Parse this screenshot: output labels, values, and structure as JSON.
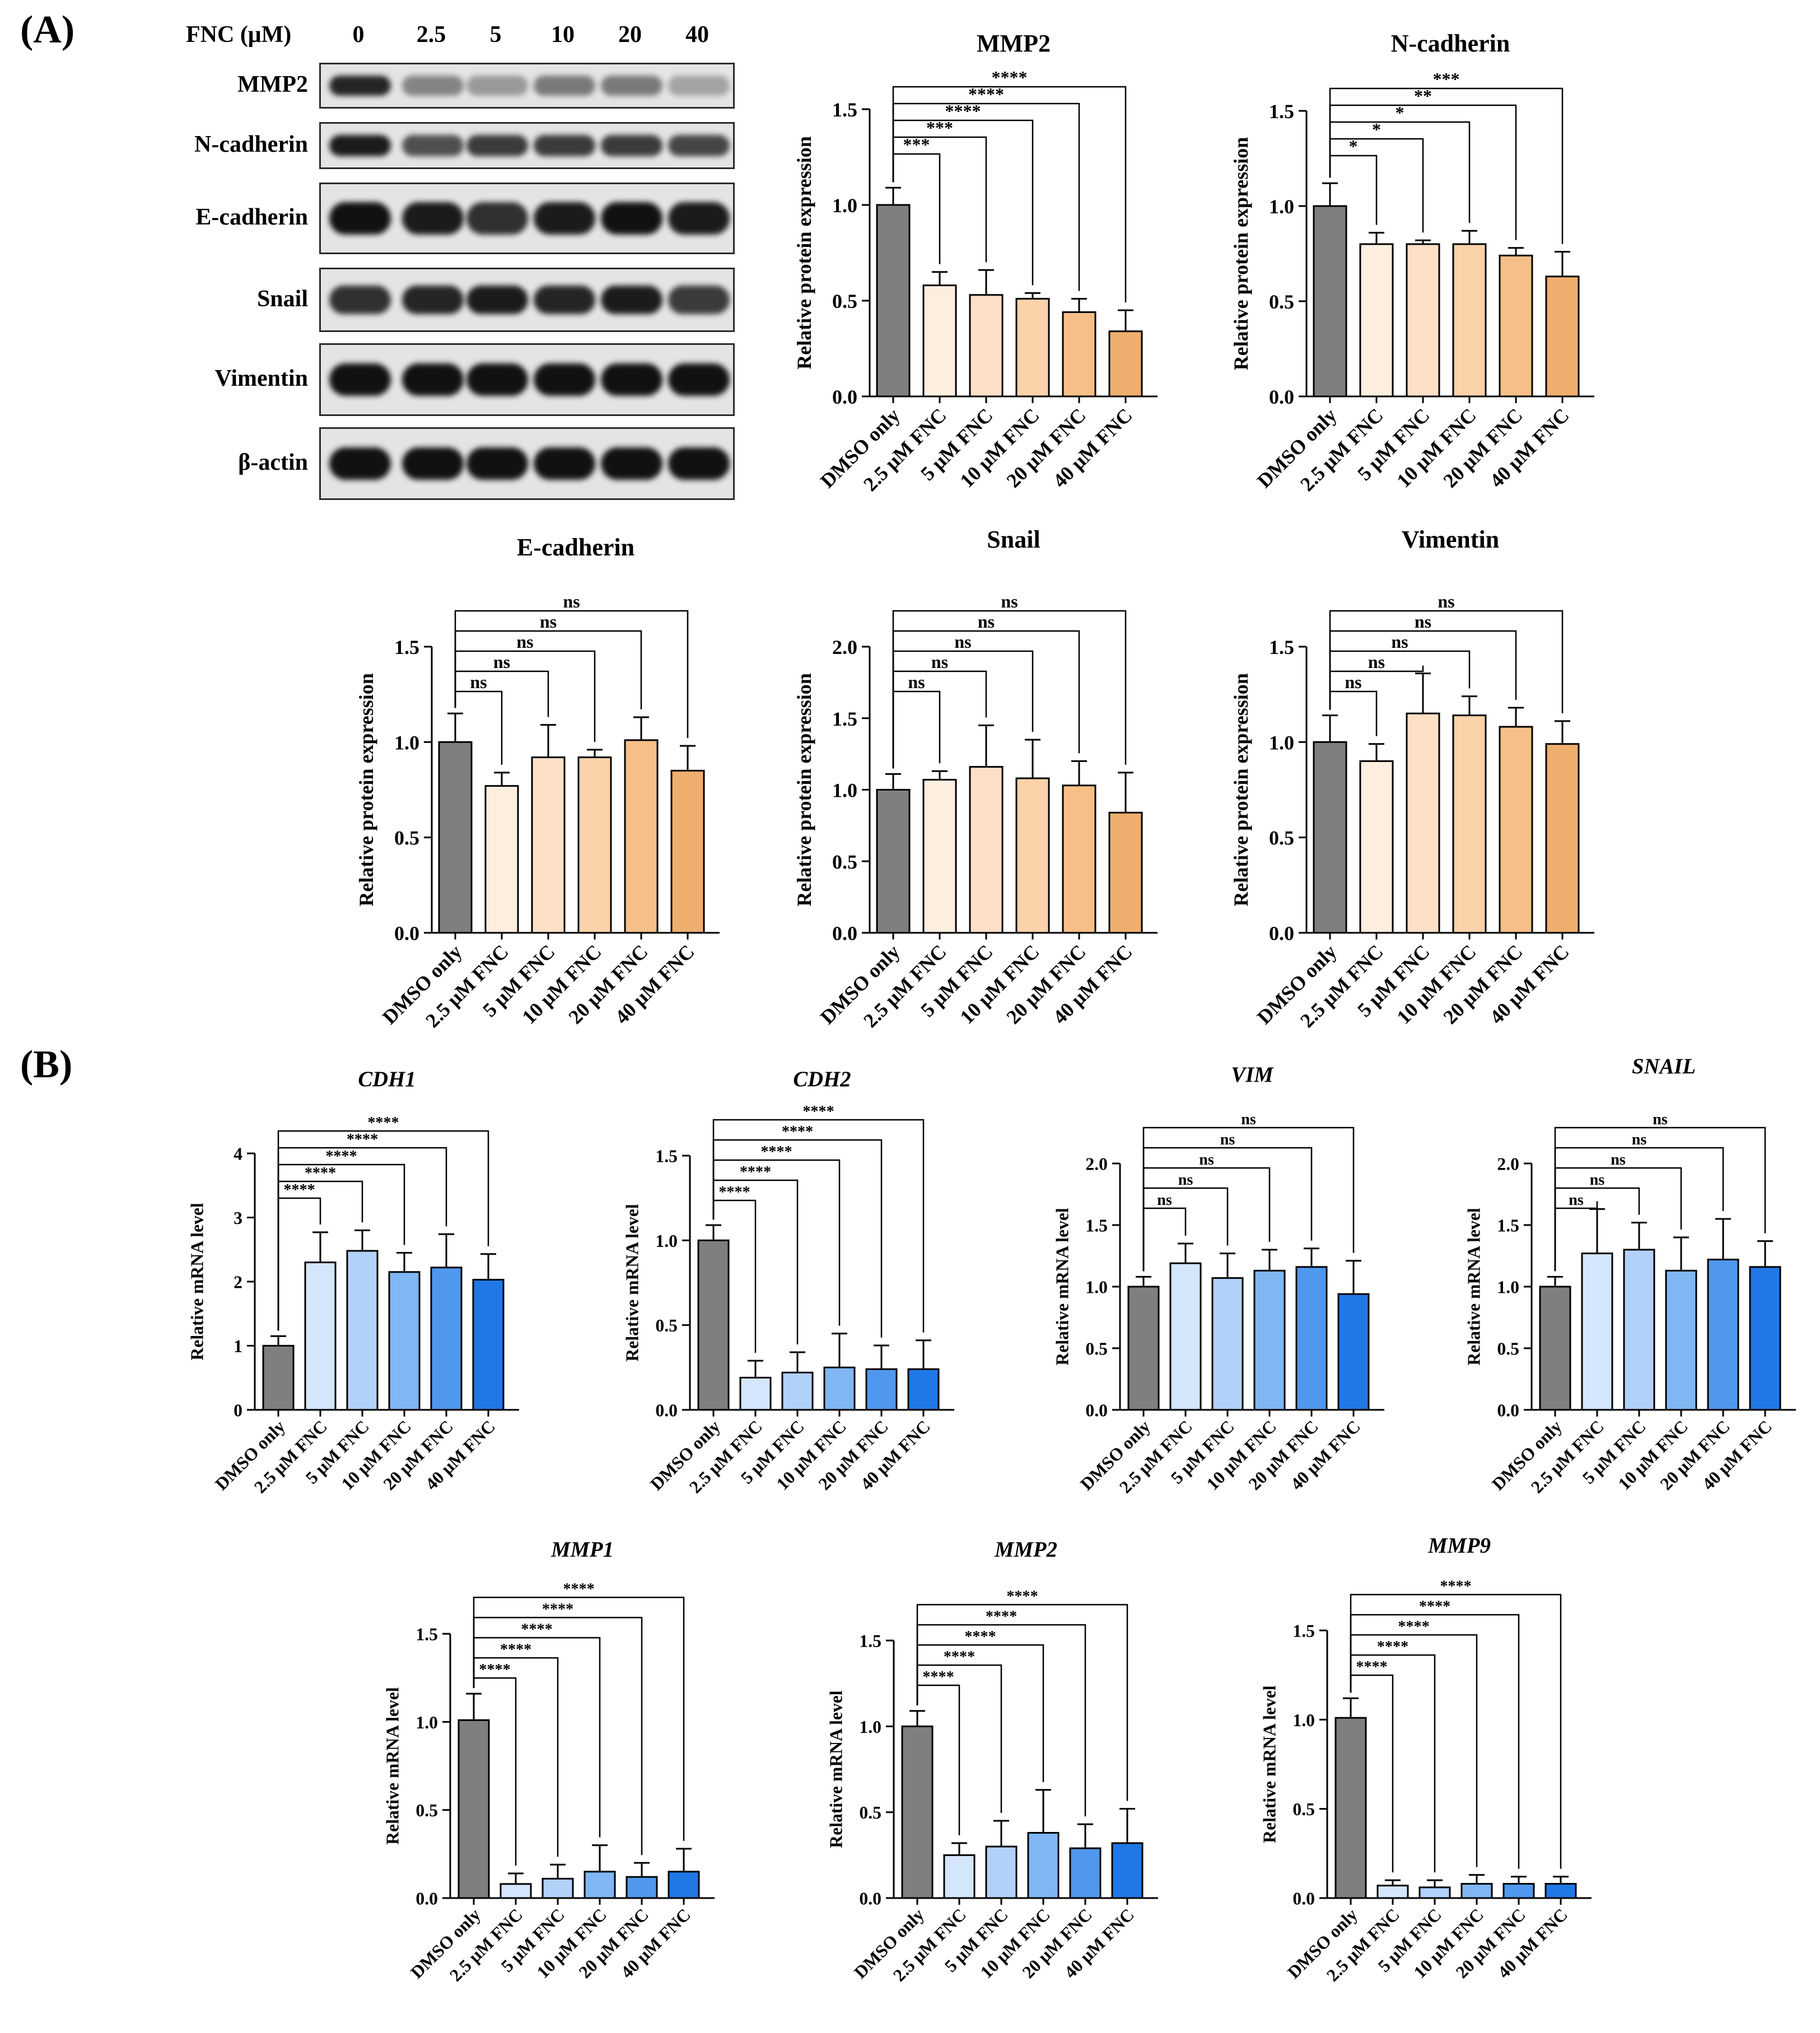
{
  "panels": {
    "a": "(A)",
    "b": "(B)"
  },
  "western_blot": {
    "header_label": "FNC (μM)",
    "lanes": [
      "0",
      "2.5",
      "5",
      "10",
      "20",
      "40"
    ],
    "rows": [
      {
        "label": "MMP2",
        "intensity": [
          0.9,
          0.45,
          0.35,
          0.5,
          0.5,
          0.3
        ]
      },
      {
        "label": "N-cadherin",
        "intensity": [
          0.95,
          0.7,
          0.8,
          0.8,
          0.8,
          0.75
        ]
      },
      {
        "label": "E-cadherin",
        "intensity": [
          1.0,
          0.95,
          0.85,
          0.95,
          1.0,
          0.95
        ]
      },
      {
        "label": "Snail",
        "intensity": [
          0.85,
          0.9,
          0.95,
          0.9,
          0.95,
          0.8
        ]
      },
      {
        "label": "Vimentin",
        "intensity": [
          1.0,
          1.0,
          1.0,
          1.0,
          1.0,
          1.0
        ]
      },
      {
        "label": "β-actin",
        "intensity": [
          1.0,
          1.0,
          1.0,
          1.0,
          1.0,
          1.0
        ]
      }
    ]
  },
  "colors": {
    "control": "#7f7f7f",
    "protein": [
      "#fdeee0",
      "#fde0c5",
      "#fbd2a9",
      "#f6bf87",
      "#efae6e"
    ],
    "mrna": [
      "#d4e6fb",
      "#b1d1f8",
      "#7fb6f3",
      "#4f98ee",
      "#1f78e6"
    ]
  },
  "chart_data": [
    {
      "type": "bar",
      "title": "MMP2",
      "title_italic": false,
      "ylabel": "Relative protein expression",
      "categories": [
        "DMSO only",
        "2.5 μM FNC",
        "5 μM FNC",
        "10 μM FNC",
        "20 μM FNC",
        "40 μM FNC"
      ],
      "values": [
        1.0,
        0.58,
        0.53,
        0.51,
        0.44,
        0.34
      ],
      "errors": [
        0.09,
        0.07,
        0.13,
        0.03,
        0.07,
        0.11
      ],
      "ylim": [
        0,
        1.5
      ],
      "yticks": [
        "0.0",
        "0.5",
        "1.0",
        "1.5"
      ],
      "palette": "protein",
      "significance": [
        "***",
        "***",
        "****",
        "****",
        "****"
      ]
    },
    {
      "type": "bar",
      "title": "N-cadherin",
      "title_italic": false,
      "ylabel": "Relative protein expression",
      "categories": [
        "DMSO only",
        "2.5 μM FNC",
        "5 μM FNC",
        "10 μM FNC",
        "20 μM FNC",
        "40 μM FNC"
      ],
      "values": [
        1.0,
        0.8,
        0.8,
        0.8,
        0.74,
        0.63
      ],
      "errors": [
        0.12,
        0.06,
        0.02,
        0.07,
        0.04,
        0.13
      ],
      "ylim": [
        0,
        1.5
      ],
      "yticks": [
        "0.0",
        "0.5",
        "1.0",
        "1.5"
      ],
      "palette": "protein",
      "significance": [
        "*",
        "*",
        "*",
        "**",
        "***"
      ]
    },
    {
      "type": "bar",
      "title": "E-cadherin",
      "title_italic": false,
      "ylabel": "Relative protein expression",
      "categories": [
        "DMSO only",
        "2.5 μM FNC",
        "5 μM FNC",
        "10 μM FNC",
        "20 μM FNC",
        "40 μM FNC"
      ],
      "values": [
        1.0,
        0.77,
        0.92,
        0.92,
        1.01,
        0.85
      ],
      "errors": [
        0.15,
        0.07,
        0.17,
        0.04,
        0.12,
        0.13
      ],
      "ylim": [
        0,
        1.5
      ],
      "yticks": [
        "0.0",
        "0.5",
        "1.0",
        "1.5"
      ],
      "palette": "protein",
      "significance": [
        "ns",
        "ns",
        "ns",
        "ns",
        "ns"
      ]
    },
    {
      "type": "bar",
      "title": "Snail",
      "title_italic": false,
      "ylabel": "Relative protein expression",
      "categories": [
        "DMSO only",
        "2.5 μM FNC",
        "5 μM FNC",
        "10 μM FNC",
        "20 μM FNC",
        "40 μM FNC"
      ],
      "values": [
        1.0,
        1.07,
        1.16,
        1.08,
        1.03,
        0.84
      ],
      "errors": [
        0.11,
        0.06,
        0.29,
        0.27,
        0.17,
        0.28
      ],
      "ylim": [
        0,
        2.0
      ],
      "yticks": [
        "0.0",
        "0.5",
        "1.0",
        "1.5",
        "2.0"
      ],
      "palette": "protein",
      "significance": [
        "ns",
        "ns",
        "ns",
        "ns",
        "ns"
      ]
    },
    {
      "type": "bar",
      "title": "Vimentin",
      "title_italic": false,
      "ylabel": "Relative protein expression",
      "categories": [
        "DMSO only",
        "2.5 μM FNC",
        "5 μM FNC",
        "10 μM FNC",
        "20 μM FNC",
        "40 μM FNC"
      ],
      "values": [
        1.0,
        0.9,
        1.15,
        1.14,
        1.08,
        0.99
      ],
      "errors": [
        0.14,
        0.09,
        0.21,
        0.1,
        0.1,
        0.12
      ],
      "ylim": [
        0,
        1.5
      ],
      "yticks": [
        "0.0",
        "0.5",
        "1.0",
        "1.5"
      ],
      "palette": "protein",
      "significance": [
        "ns",
        "ns",
        "ns",
        "ns",
        "ns"
      ]
    },
    {
      "type": "bar",
      "title": "CDH1",
      "title_italic": true,
      "ylabel": "Relative mRNA level",
      "categories": [
        "DMSO only",
        "2.5 μM FNC",
        "5 μM FNC",
        "10 μM FNC",
        "20 μM FNC",
        "40 μM FNC"
      ],
      "values": [
        1.0,
        2.3,
        2.48,
        2.15,
        2.22,
        2.03
      ],
      "errors": [
        0.15,
        0.47,
        0.32,
        0.3,
        0.52,
        0.4
      ],
      "ylim": [
        0,
        4
      ],
      "yticks": [
        "0",
        "1",
        "2",
        "3",
        "4"
      ],
      "palette": "mrna",
      "significance": [
        "****",
        "****",
        "****",
        "****",
        "****"
      ]
    },
    {
      "type": "bar",
      "title": "CDH2",
      "title_italic": true,
      "ylabel": "Relative mRNA level",
      "categories": [
        "DMSO only",
        "2.5 μM FNC",
        "5 μM FNC",
        "10 μM FNC",
        "20 μM FNC",
        "40 μM FNC"
      ],
      "values": [
        1.0,
        0.19,
        0.22,
        0.25,
        0.24,
        0.24
      ],
      "errors": [
        0.09,
        0.1,
        0.12,
        0.2,
        0.14,
        0.17
      ],
      "ylim": [
        0,
        1.5
      ],
      "yticks": [
        "0.0",
        "0.5",
        "1.0",
        "1.5"
      ],
      "palette": "mrna",
      "significance": [
        "****",
        "****",
        "****",
        "****",
        "****"
      ]
    },
    {
      "type": "bar",
      "title": "VIM",
      "title_italic": true,
      "ylabel": "Relative mRNA level",
      "categories": [
        "DMSO only",
        "2.5 μM FNC",
        "5 μM FNC",
        "10 μM FNC",
        "20 μM FNC",
        "40 μM FNC"
      ],
      "values": [
        1.0,
        1.19,
        1.07,
        1.13,
        1.16,
        0.94
      ],
      "errors": [
        0.08,
        0.16,
        0.2,
        0.17,
        0.15,
        0.27
      ],
      "ylim": [
        0,
        2.0
      ],
      "yticks": [
        "0.0",
        "0.5",
        "1.0",
        "1.5",
        "2.0"
      ],
      "palette": "mrna",
      "significance": [
        "ns",
        "ns",
        "ns",
        "ns",
        "ns"
      ]
    },
    {
      "type": "bar",
      "title": "SNAIL",
      "title_italic": true,
      "ylabel": "Relative mRNA level",
      "categories": [
        "DMSO only",
        "2.5 μM FNC",
        "5 μM FNC",
        "10 μM FNC",
        "20 μM FNC",
        "40 μM FNC"
      ],
      "values": [
        1.0,
        1.27,
        1.3,
        1.13,
        1.22,
        1.16
      ],
      "errors": [
        0.08,
        0.36,
        0.22,
        0.27,
        0.33,
        0.21
      ],
      "ylim": [
        0,
        2.0
      ],
      "yticks": [
        "0.0",
        "0.5",
        "1.0",
        "1.5",
        "2.0"
      ],
      "palette": "mrna",
      "significance": [
        "ns",
        "ns",
        "ns",
        "ns",
        "ns"
      ]
    },
    {
      "type": "bar",
      "title": "MMP1",
      "title_italic": true,
      "ylabel": "Relative mRNA level",
      "categories": [
        "DMSO only",
        "2.5 μM FNC",
        "5 μM FNC",
        "10 μM FNC",
        "20 μM FNC",
        "40 μM FNC"
      ],
      "values": [
        1.01,
        0.08,
        0.11,
        0.15,
        0.12,
        0.15
      ],
      "errors": [
        0.15,
        0.06,
        0.08,
        0.15,
        0.08,
        0.13
      ],
      "ylim": [
        0,
        1.5
      ],
      "yticks": [
        "0.0",
        "0.5",
        "1.0",
        "1.5"
      ],
      "palette": "mrna",
      "significance": [
        "****",
        "****",
        "****",
        "****",
        "****"
      ]
    },
    {
      "type": "bar",
      "title": "MMP2",
      "title_italic": true,
      "ylabel": "Relative mRNA level",
      "categories": [
        "DMSO only",
        "2.5 μM FNC",
        "5 μM FNC",
        "10 μM FNC",
        "20 μM FNC",
        "40 μM FNC"
      ],
      "values": [
        1.0,
        0.25,
        0.3,
        0.38,
        0.29,
        0.32
      ],
      "errors": [
        0.09,
        0.07,
        0.15,
        0.25,
        0.14,
        0.2
      ],
      "ylim": [
        0,
        1.5
      ],
      "yticks": [
        "0.0",
        "0.5",
        "1.0",
        "1.5"
      ],
      "palette": "mrna",
      "significance": [
        "****",
        "****",
        "****",
        "****",
        "****"
      ]
    },
    {
      "type": "bar",
      "title": "MMP9",
      "title_italic": true,
      "ylabel": "Relative mRNA level",
      "categories": [
        "DMSO only",
        "2.5 μM FNC",
        "5 μM FNC",
        "10 μM FNC",
        "20 μM FNC",
        "40 μM FNC"
      ],
      "values": [
        1.01,
        0.07,
        0.06,
        0.08,
        0.08,
        0.08
      ],
      "errors": [
        0.11,
        0.03,
        0.04,
        0.05,
        0.04,
        0.04
      ],
      "ylim": [
        0,
        1.5
      ],
      "yticks": [
        "0.0",
        "0.5",
        "1.0",
        "1.5"
      ],
      "palette": "mrna",
      "significance": [
        "****",
        "****",
        "****",
        "****",
        "****"
      ]
    }
  ]
}
